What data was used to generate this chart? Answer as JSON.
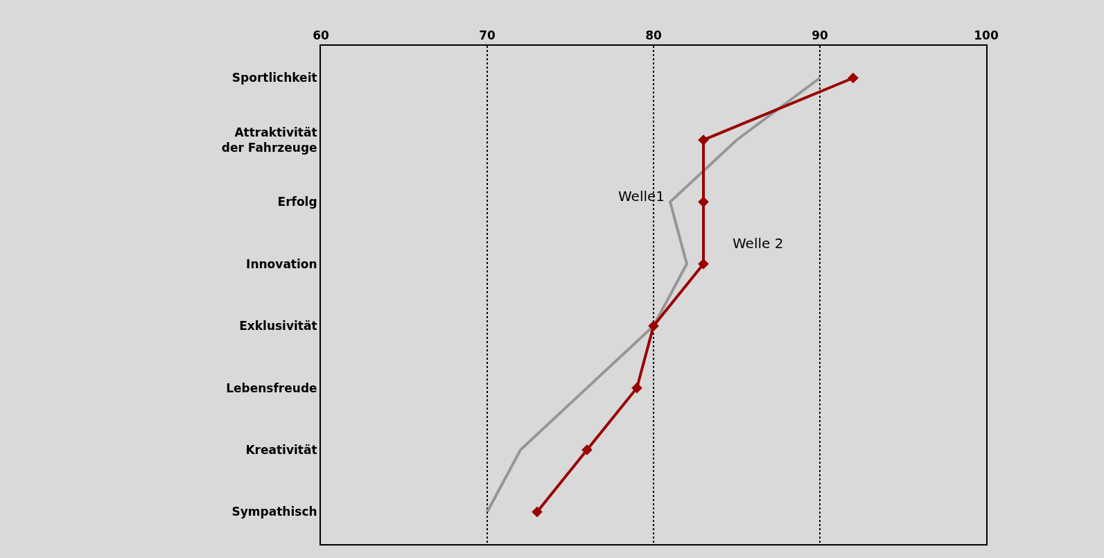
{
  "chart_data": {
    "type": "line",
    "orientation": "horizontal",
    "categories": [
      "Sportlichkeit",
      "Attraktivität\nder Fahrzeuge",
      "Erfolg",
      "Innovation",
      "Exklusivität",
      "Lebensfreude",
      "Kreativität",
      "Sympathisch"
    ],
    "series": [
      {
        "name": "Welle1",
        "color": "#969696",
        "marker": "none",
        "values": [
          90,
          85,
          81,
          82,
          80,
          76,
          72,
          70
        ]
      },
      {
        "name": "Welle 2",
        "color": "#990000",
        "marker": "diamond",
        "values": [
          92,
          83,
          83,
          83,
          80,
          79,
          76,
          73
        ]
      }
    ],
    "xlim": [
      60,
      100
    ],
    "xticks": [
      60,
      70,
      80,
      90,
      100
    ],
    "grid": "x",
    "legend": false
  }
}
